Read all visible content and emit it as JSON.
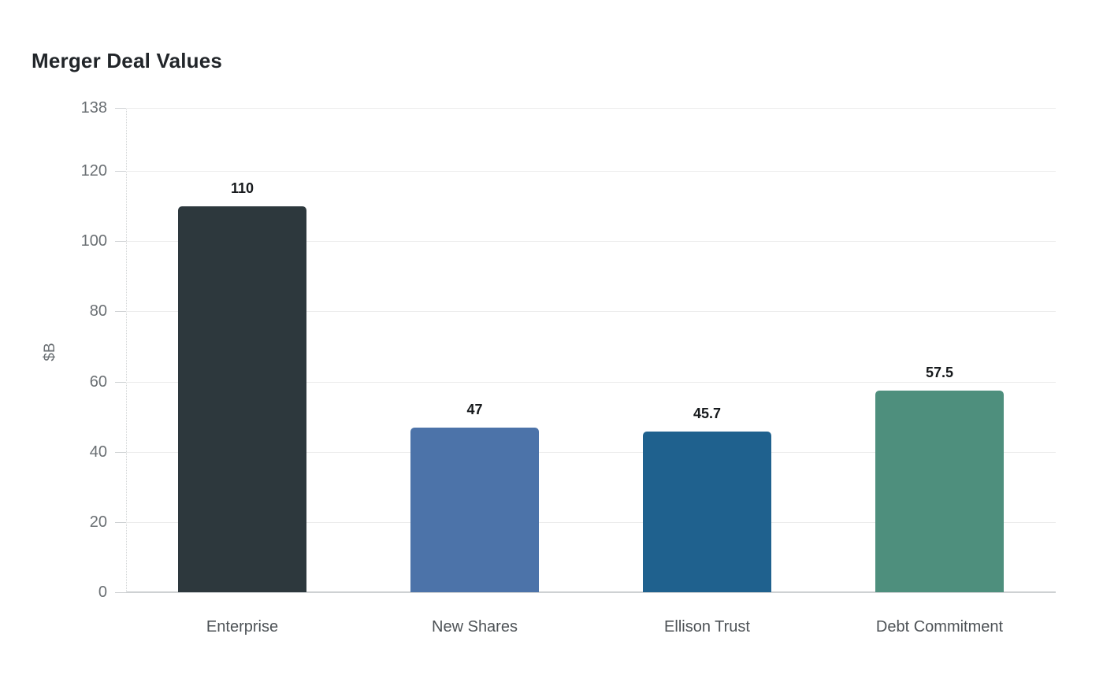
{
  "chart_data": {
    "type": "bar",
    "title": "Merger Deal Values",
    "ylabel": "$B",
    "xlabel": "",
    "categories": [
      "Enterprise",
      "New Shares",
      "Ellison Trust",
      "Debt Commitment"
    ],
    "values": [
      110,
      47,
      45.7,
      57.5
    ],
    "value_labels": [
      "110",
      "47",
      "45.7",
      "57.5"
    ],
    "bar_colors": [
      "#2d383d",
      "#4c73a9",
      "#1f618e",
      "#4e8f7d"
    ],
    "yticks": [
      0,
      20,
      40,
      60,
      80,
      100,
      120,
      138
    ],
    "ytick_labels": [
      "0",
      "20",
      "40",
      "60",
      "80",
      "100",
      "120",
      "138"
    ],
    "ylim": [
      0,
      138
    ],
    "grid": true,
    "legend": false,
    "background": "#ffffff",
    "colors": {
      "title": "#212529",
      "tick_label": "#6a6f73",
      "category_label": "#4d5256",
      "value_label": "#16191c",
      "gridline": "#ececec",
      "zero_line": "#ced1d3",
      "tick_mark": "#cfd2d4",
      "axis_line": "#d2d5d6"
    }
  }
}
